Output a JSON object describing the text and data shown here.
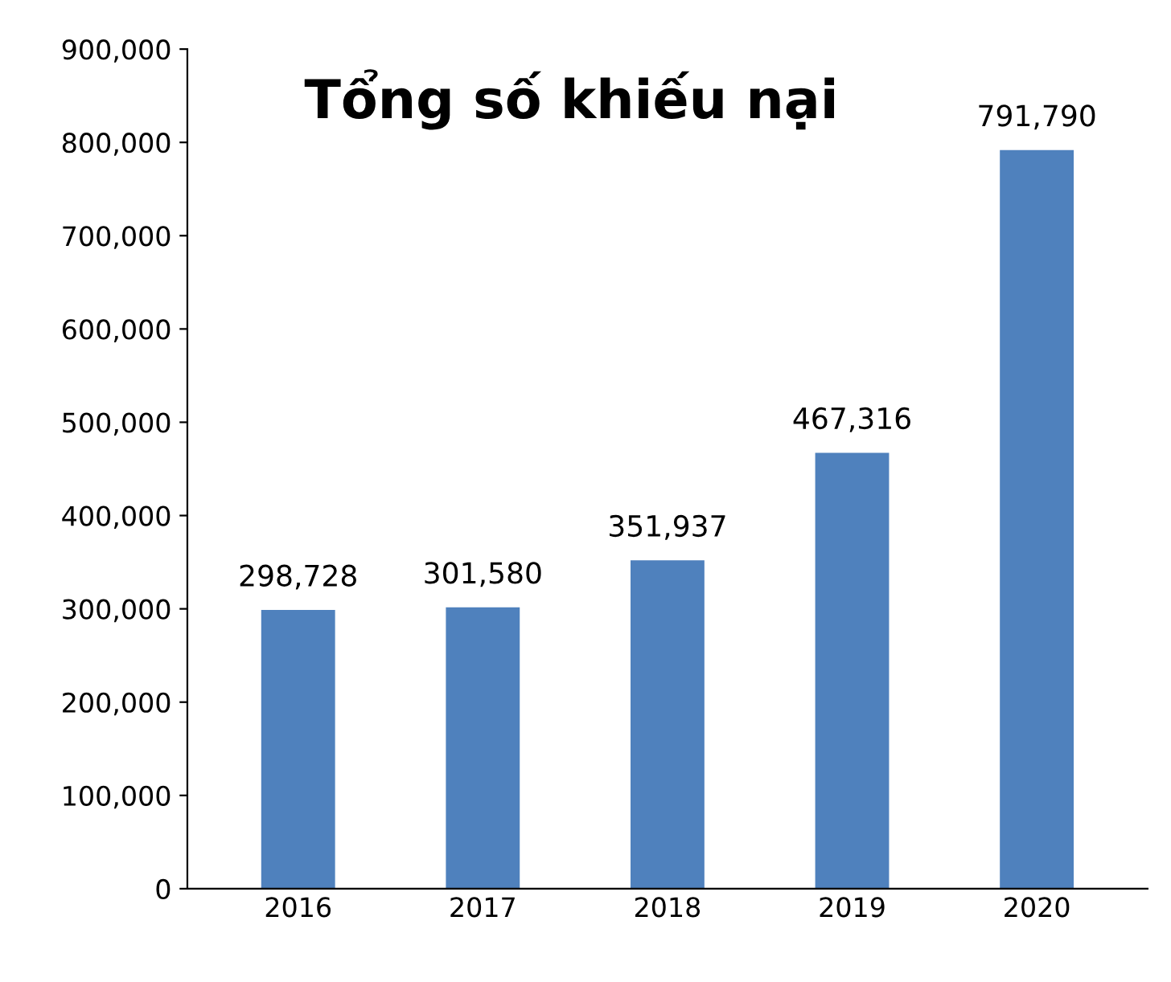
{
  "chart_data": {
    "type": "bar",
    "title": "Tổng số khiếu nại",
    "categories": [
      "2016",
      "2017",
      "2018",
      "2019",
      "2020"
    ],
    "values": [
      298728,
      301580,
      351937,
      467316,
      791790
    ],
    "value_labels": [
      "298,728",
      "301,580",
      "351,937",
      "467,316",
      "791,790"
    ],
    "color": "#4f81bd",
    "ylim": [
      0,
      900000
    ],
    "yticks": [
      {
        "value": 0,
        "label": "0"
      },
      {
        "value": 100000,
        "label": "100,000"
      },
      {
        "value": 200000,
        "label": "200,000"
      },
      {
        "value": 300000,
        "label": "300,000"
      },
      {
        "value": 400000,
        "label": "400,000"
      },
      {
        "value": 500000,
        "label": "500,000"
      },
      {
        "value": 600000,
        "label": "600,000"
      },
      {
        "value": 700000,
        "label": "700,000"
      },
      {
        "value": 800000,
        "label": "800,000"
      },
      {
        "value": 900000,
        "label": "900,000"
      }
    ],
    "grid": false
  }
}
